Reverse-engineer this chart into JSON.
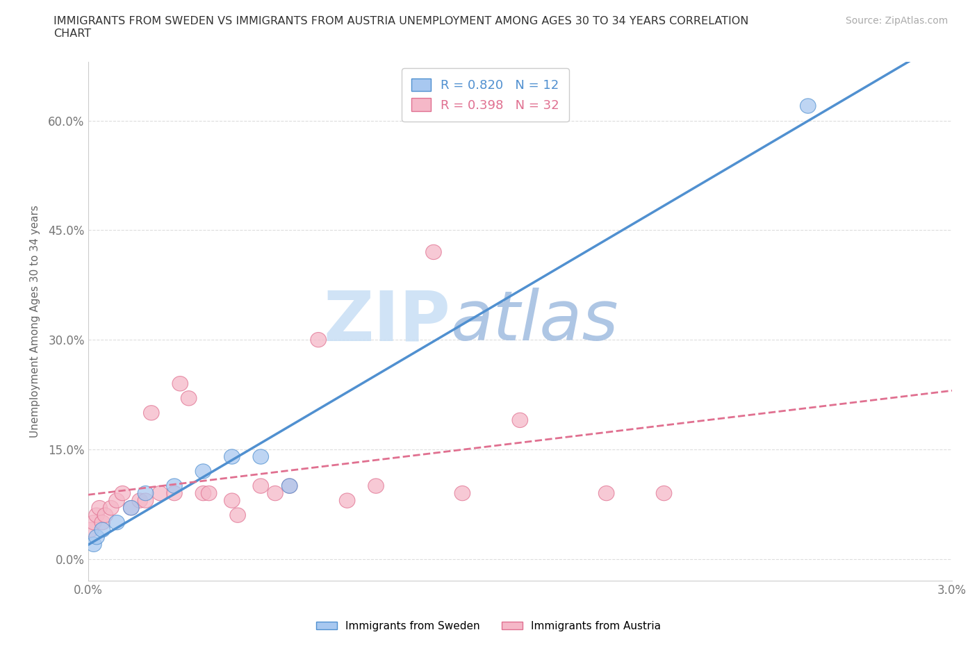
{
  "title": "IMMIGRANTS FROM SWEDEN VS IMMIGRANTS FROM AUSTRIA UNEMPLOYMENT AMONG AGES 30 TO 34 YEARS CORRELATION\nCHART",
  "source": "Source: ZipAtlas.com",
  "ylabel": "Unemployment Among Ages 30 to 34 years",
  "xlim": [
    0.0,
    0.03
  ],
  "ylim": [
    -0.03,
    0.68
  ],
  "xticks": [
    0.0,
    0.005,
    0.01,
    0.015,
    0.02,
    0.025,
    0.03
  ],
  "xtick_labels": [
    "0.0%",
    "",
    "",
    "",
    "",
    "",
    "3.0%"
  ],
  "yticks": [
    0.0,
    0.15,
    0.3,
    0.45,
    0.6
  ],
  "ytick_labels": [
    "0.0%",
    "15.0%",
    "30.0%",
    "45.0%",
    "60.0%"
  ],
  "sweden_color": "#a8c8f0",
  "sweden_color_dark": "#5090d0",
  "austria_color": "#f5b8c8",
  "austria_color_dark": "#e07090",
  "sweden_R": 0.82,
  "sweden_N": 12,
  "austria_R": 0.398,
  "austria_N": 32,
  "sweden_points_x": [
    0.0002,
    0.0003,
    0.0005,
    0.001,
    0.0015,
    0.002,
    0.003,
    0.004,
    0.005,
    0.006,
    0.007,
    0.025
  ],
  "sweden_points_y": [
    0.02,
    0.03,
    0.04,
    0.05,
    0.07,
    0.09,
    0.1,
    0.12,
    0.14,
    0.14,
    0.1,
    0.62
  ],
  "austria_points_x": [
    0.0001,
    0.0002,
    0.0003,
    0.0004,
    0.0005,
    0.0006,
    0.0008,
    0.001,
    0.0012,
    0.0015,
    0.0018,
    0.002,
    0.0022,
    0.0025,
    0.003,
    0.0032,
    0.0035,
    0.004,
    0.0042,
    0.005,
    0.0052,
    0.006,
    0.0065,
    0.007,
    0.008,
    0.009,
    0.01,
    0.012,
    0.013,
    0.015,
    0.018,
    0.02
  ],
  "austria_points_y": [
    0.04,
    0.05,
    0.06,
    0.07,
    0.05,
    0.06,
    0.07,
    0.08,
    0.09,
    0.07,
    0.08,
    0.08,
    0.2,
    0.09,
    0.09,
    0.24,
    0.22,
    0.09,
    0.09,
    0.08,
    0.06,
    0.1,
    0.09,
    0.1,
    0.3,
    0.08,
    0.1,
    0.42,
    0.09,
    0.19,
    0.09,
    0.09
  ],
  "background_color": "#ffffff",
  "grid_color": "#dddddd",
  "watermark_zip": "ZIP",
  "watermark_atlas": "atlas",
  "watermark_color_zip": "#c8dff5",
  "watermark_color_atlas": "#a8c8e8"
}
